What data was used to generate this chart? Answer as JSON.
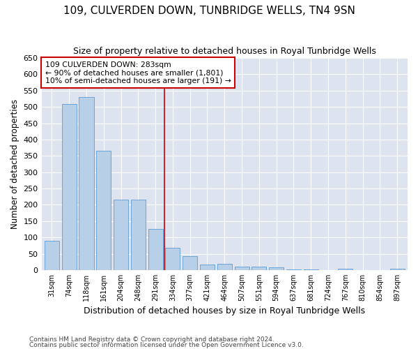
{
  "title1": "109, CULVERDEN DOWN, TUNBRIDGE WELLS, TN4 9SN",
  "title2": "Size of property relative to detached houses in Royal Tunbridge Wells",
  "xlabel": "Distribution of detached houses by size in Royal Tunbridge Wells",
  "ylabel": "Number of detached properties",
  "footnote1": "Contains HM Land Registry data © Crown copyright and database right 2024.",
  "footnote2": "Contains public sector information licensed under the Open Government Licence v3.0.",
  "categories": [
    "31sqm",
    "74sqm",
    "118sqm",
    "161sqm",
    "204sqm",
    "248sqm",
    "291sqm",
    "334sqm",
    "377sqm",
    "421sqm",
    "464sqm",
    "507sqm",
    "551sqm",
    "594sqm",
    "637sqm",
    "681sqm",
    "724sqm",
    "767sqm",
    "810sqm",
    "854sqm",
    "897sqm"
  ],
  "values": [
    90,
    508,
    530,
    365,
    216,
    216,
    126,
    68,
    43,
    18,
    20,
    10,
    10,
    8,
    2,
    2,
    0,
    4,
    0,
    0,
    4
  ],
  "bar_color": "#b8cfe8",
  "bar_edge_color": "#5b9bd5",
  "vline_x_index": 6,
  "vline_color": "#cc0000",
  "annotation_line1": "109 CULVERDEN DOWN: 283sqm",
  "annotation_line2": "← 90% of detached houses are smaller (1,801)",
  "annotation_line3": "10% of semi-detached houses are larger (191) →",
  "annotation_box_color": "#cc0000",
  "ylim": [
    0,
    650
  ],
  "yticks": [
    0,
    50,
    100,
    150,
    200,
    250,
    300,
    350,
    400,
    450,
    500,
    550,
    600,
    650
  ],
  "background_color": "#dde4f0",
  "grid_color": "#ffffff",
  "fig_facecolor": "#ffffff"
}
